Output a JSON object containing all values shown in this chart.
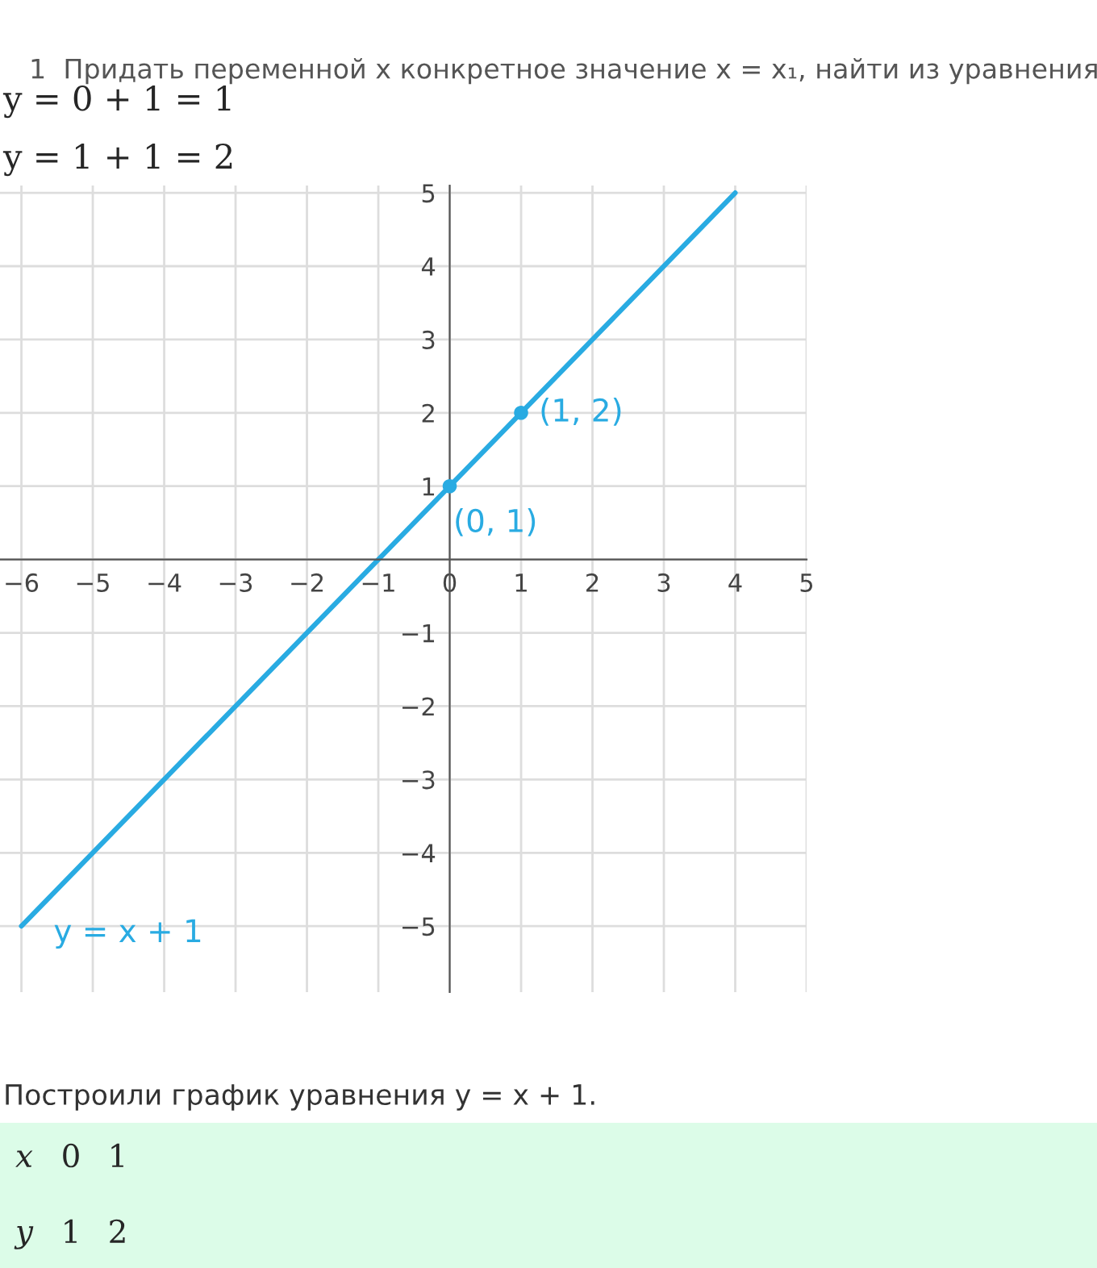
{
  "chart_data": {
    "type": "line",
    "annotations": [
      "1  Придать переменной x конкретное значение x = x₁, найти из уравнения",
      "y = 0 + 1 = 1",
      "y = 1 + 1 = 2",
      "Построили график уравнения y = x + 1.",
      "x",
      "0",
      "1",
      "y",
      "1",
      "2"
    ],
    "series": [
      {
        "name": "y = x + 1",
        "type": "line",
        "color": "#29abe2",
        "x": [
          -6,
          4
        ],
        "values": [
          -5,
          5
        ]
      },
      {
        "type": "scatter",
        "color": "#29abe2",
        "x": [
          0,
          1
        ],
        "values": [
          1,
          2
        ],
        "value_labels": [
          "(0, 1)",
          "(1, 2)"
        ]
      }
    ],
    "xlim": [
      -6.3,
      5
    ],
    "ylim": [
      -5.9,
      5.1
    ],
    "xticks": [
      {
        "value": -6,
        "label": "−6"
      },
      {
        "value": -5,
        "label": "−5"
      },
      {
        "value": -4,
        "label": "−4"
      },
      {
        "value": -3,
        "label": "−3"
      },
      {
        "value": -2,
        "label": "−2"
      },
      {
        "value": -1,
        "label": "−1"
      },
      {
        "value": 0,
        "label": "0"
      },
      1,
      2,
      3,
      4,
      5
    ],
    "yticks": [
      {
        "value": -5,
        "label": "−5"
      },
      {
        "value": -4,
        "label": "−4"
      },
      {
        "value": -3,
        "label": "−3"
      },
      {
        "value": -2,
        "label": "−2"
      },
      {
        "value": -1,
        "label": "−1"
      },
      {
        "value": 0,
        "label": null
      },
      1,
      2,
      3,
      4,
      5
    ],
    "grid": true,
    "legend": false
  }
}
